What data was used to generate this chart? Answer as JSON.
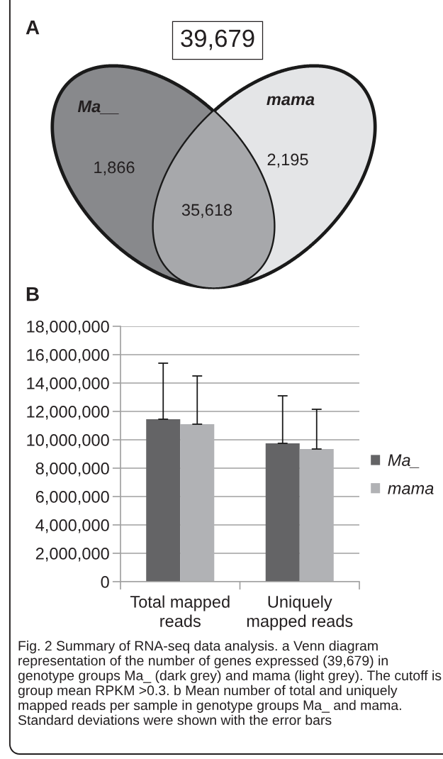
{
  "chart_data": [
    {
      "type": "other",
      "title": "A",
      "categories": [
        "Ma__",
        "mama",
        null
      ],
      "values": [
        1866,
        2195,
        35618
      ],
      "value_labels": [
        "1,866",
        "2,195",
        "35,618"
      ],
      "colors": [
        "#88898c",
        "#e4e5e7",
        "#a7a8ab"
      ],
      "annotations": [
        "39,679"
      ]
    },
    {
      "type": "bar",
      "title": "B",
      "categories": [
        "Total mapped reads",
        "Uniquely mapped reads"
      ],
      "series": [
        {
          "name": "Ma_",
          "color": "#646466",
          "values": [
            11450000,
            9750000
          ],
          "errors": [
            [
              11450000,
              15400000
            ],
            [
              9750000,
              13100000
            ]
          ]
        },
        {
          "name": "mama",
          "color": "#b1b2b5",
          "values": [
            11100000,
            9350000
          ],
          "errors": [
            [
              11100000,
              14500000
            ],
            [
              9350000,
              12150000
            ]
          ]
        }
      ],
      "ylim": [
        0,
        18000000
      ],
      "yticks": [
        0,
        {
          "value": 2000000,
          "label": "2,000,000"
        },
        {
          "value": 4000000,
          "label": "4,000,000"
        },
        {
          "value": 6000000,
          "label": "6,000,000"
        },
        {
          "value": 8000000,
          "label": "8,000,000"
        },
        {
          "value": 10000000,
          "label": "10,000,000"
        },
        {
          "value": 12000000,
          "label": "12,000,000"
        },
        {
          "value": 14000000,
          "label": "14,000,000"
        },
        {
          "value": 16000000,
          "label": "16,000,000"
        },
        {
          "value": 18000000,
          "label": "18,000,000"
        }
      ],
      "grid": "y",
      "legend": "right",
      "annotations": [
        "Fig. 2 Summary of RNA-seq data analysis. a Venn diagram representation of the number of genes expressed (39,679) in genotype groups Ma_ (dark grey) and mama (light grey). The cutoff is group mean RPKM >0.3. b Mean number of total and uniquely mapped reads per sample in genotype groups Ma_ and mama. Standard deviations were shown with the error bars"
      ]
    }
  ]
}
